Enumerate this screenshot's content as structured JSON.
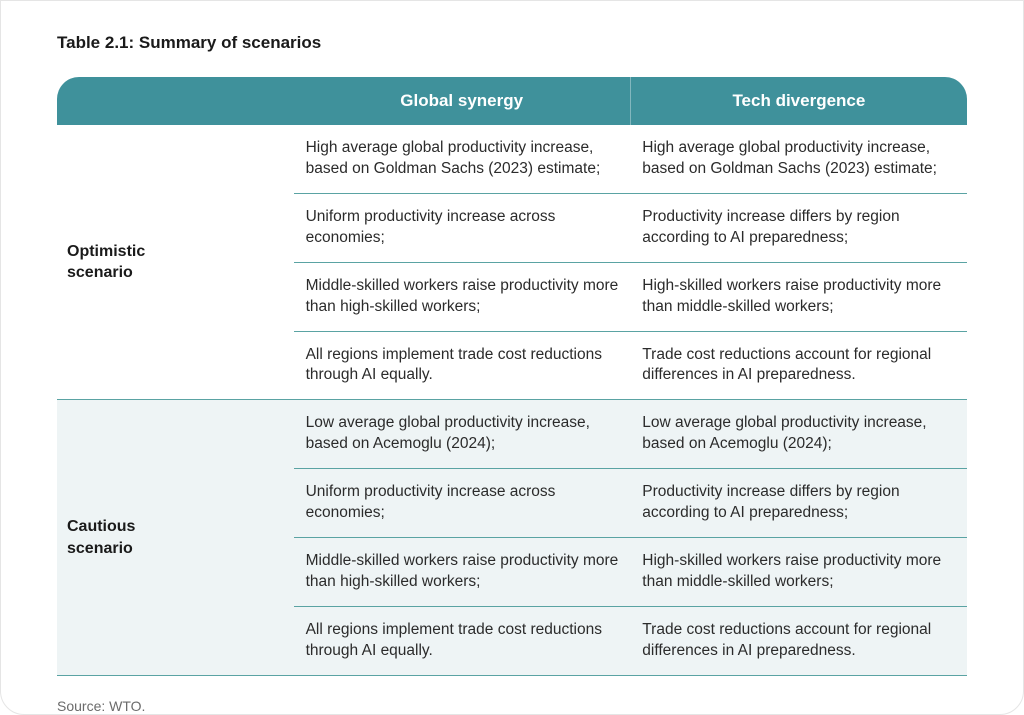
{
  "title": "Table 2.1: Summary of scenarios",
  "header_bg": "#3f919b",
  "border_color": "#5aa3a3",
  "alt_row_bg": "#eef4f5",
  "columns": [
    "",
    "Global synergy",
    "Tech divergence"
  ],
  "groups": [
    {
      "label": "Optimistic scenario",
      "bg": "#ffffff",
      "rows": [
        {
          "c1": "High average global productivity increase, based on Goldman Sachs (2023) estimate;",
          "c2": "High average global productivity increase, based on Goldman Sachs (2023) estimate;"
        },
        {
          "c1": "Uniform productivity increase across economies;",
          "c2": "Productivity increase differs by region according to AI preparedness;"
        },
        {
          "c1": "Middle-skilled workers raise productivity more than high-skilled workers;",
          "c2": "High-skilled workers raise productivity more than middle-skilled workers;"
        },
        {
          "c1": "All regions implement trade cost reductions through AI equally.",
          "c2": "Trade cost reductions account for regional differences in AI preparedness."
        }
      ]
    },
    {
      "label": "Cautious scenario",
      "bg": "#eef4f5",
      "rows": [
        {
          "c1": "Low average global productivity increase, based on Acemoglu (2024);",
          "c2": "Low average global productivity increase, based on Acemoglu (2024);"
        },
        {
          "c1": "Uniform productivity increase across economies;",
          "c2": "Productivity increase differs by region according to AI preparedness;"
        },
        {
          "c1": "Middle-skilled workers raise productivity more than high-skilled workers;",
          "c2": "High-skilled workers raise productivity more than middle-skilled workers;"
        },
        {
          "c1": "All regions implement trade cost reductions through AI equally.",
          "c2": "Trade cost reductions account for regional differences in AI preparedness."
        }
      ]
    }
  ],
  "source": "Source: WTO."
}
